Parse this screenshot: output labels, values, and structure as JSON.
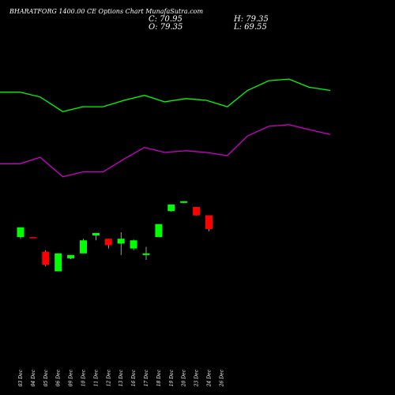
{
  "header": {
    "title": "BHARATFORG 1400.00  CE Options  Chart MunafaSutra.com"
  },
  "ohlc": {
    "c_label": "C: 70.95",
    "o_label": "O: 79.35",
    "h_label": "H: 79.35",
    "l_label": "L: 69.55"
  },
  "colors": {
    "background": "#000000",
    "up": "#00ff00",
    "down": "#ff0000",
    "upper_band": "#00ff00",
    "lower_band": "#cc00cc",
    "text": "#ffffff"
  },
  "chart_data": {
    "type": "candlestick",
    "title": "BHARATFORG 1400.00  CE Options  Chart MunafaSutra.com",
    "categories": [
      "03 Dec",
      "04 Dec",
      "05 Dec",
      "06 Dec",
      "09 Dec",
      "10 Dec",
      "11 Dec",
      "12 Dec",
      "13 Dec",
      "16 Dec",
      "17 Dec",
      "18 Dec",
      "19 Dec",
      "20 Dec",
      "23 Dec",
      "24 Dec",
      "26 Dec"
    ],
    "ylim": [
      20,
      180
    ],
    "candles": [
      {
        "o": 66,
        "h": 72,
        "l": 65,
        "c": 72
      },
      {
        "o": 66,
        "h": 66,
        "l": 65.5,
        "c": 65.7
      },
      {
        "o": 57,
        "h": 58,
        "l": 48,
        "c": 49
      },
      {
        "o": 45,
        "h": 56,
        "l": 45,
        "c": 56
      },
      {
        "o": 53,
        "h": 55,
        "l": 52.5,
        "c": 55
      },
      {
        "o": 56,
        "h": 65,
        "l": 56,
        "c": 64
      },
      {
        "o": 67,
        "h": 68.5,
        "l": 64,
        "c": 68.5
      },
      {
        "o": 65,
        "h": 65,
        "l": 59,
        "c": 61
      },
      {
        "o": 62,
        "h": 69,
        "l": 55,
        "c": 65
      },
      {
        "o": 59,
        "h": 64.5,
        "l": 58,
        "c": 64
      },
      {
        "o": 55,
        "h": 60,
        "l": 52,
        "c": 56
      },
      {
        "o": 66,
        "h": 74,
        "l": 66,
        "c": 74
      },
      {
        "o": 82,
        "h": 86,
        "l": 81.5,
        "c": 86
      },
      {
        "o": 87,
        "h": 88,
        "l": 87,
        "c": 88
      },
      {
        "o": 84.5,
        "h": 84.5,
        "l": 79.3,
        "c": 79.3
      },
      {
        "o": 79.35,
        "h": 79.35,
        "l": 69.55,
        "c": 70.95
      }
    ],
    "candle_slots": [
      0,
      1,
      2,
      3,
      4,
      5,
      6,
      7,
      8,
      9,
      10,
      11,
      12,
      13,
      14,
      15
    ],
    "upper_band": [
      {
        "x": 0,
        "y": 155
      },
      {
        "x": 1.6,
        "y": 155
      },
      {
        "x": 3.2,
        "y": 152
      },
      {
        "x": 5,
        "y": 143
      },
      {
        "x": 6.6,
        "y": 146
      },
      {
        "x": 8.2,
        "y": 146
      },
      {
        "x": 9.9,
        "y": 150
      },
      {
        "x": 11.5,
        "y": 153
      },
      {
        "x": 13.1,
        "y": 149
      },
      {
        "x": 14.8,
        "y": 151
      },
      {
        "x": 16.4,
        "y": 150
      },
      {
        "x": 18.1,
        "y": 146
      },
      {
        "x": 19.7,
        "y": 156
      },
      {
        "x": 21.4,
        "y": 162
      },
      {
        "x": 23,
        "y": 163
      },
      {
        "x": 24.6,
        "y": 158
      },
      {
        "x": 26.3,
        "y": 156
      }
    ],
    "lower_band": [
      {
        "x": 0,
        "y": 111
      },
      {
        "x": 1.6,
        "y": 111
      },
      {
        "x": 3.2,
        "y": 115
      },
      {
        "x": 5,
        "y": 103
      },
      {
        "x": 6.6,
        "y": 106
      },
      {
        "x": 8.2,
        "y": 106
      },
      {
        "x": 9.9,
        "y": 114
      },
      {
        "x": 11.5,
        "y": 121
      },
      {
        "x": 13.1,
        "y": 118
      },
      {
        "x": 14.8,
        "y": 119
      },
      {
        "x": 16.4,
        "y": 118
      },
      {
        "x": 18.1,
        "y": 116
      },
      {
        "x": 19.7,
        "y": 128
      },
      {
        "x": 21.4,
        "y": 134
      },
      {
        "x": 23,
        "y": 135
      },
      {
        "x": 24.6,
        "y": 132
      },
      {
        "x": 26.3,
        "y": 129
      }
    ],
    "grid": false,
    "legend": "none"
  }
}
